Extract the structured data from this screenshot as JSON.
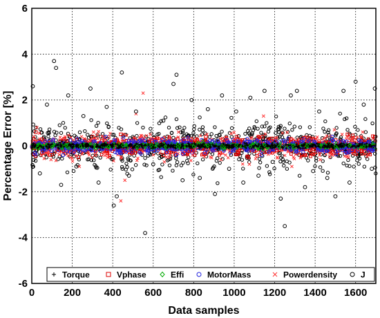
{
  "chart_data": {
    "type": "scatter",
    "title": "",
    "xlabel": "Data samples",
    "ylabel": "Percentage Error [%]",
    "xlim": [
      0,
      1700
    ],
    "ylim": [
      -6,
      6
    ],
    "xticks": [
      0,
      200,
      400,
      600,
      800,
      1000,
      1200,
      1400,
      1600
    ],
    "yticks": [
      -6,
      -4,
      -2,
      0,
      2,
      4,
      6
    ],
    "x_tick_labels": [
      "0",
      "200",
      "400",
      "600",
      "800",
      "1000",
      "1200",
      "1400",
      "1600"
    ],
    "y_tick_labels": [
      "-6",
      "-4",
      "-2",
      "0",
      "2",
      "4",
      "6"
    ],
    "grid": true,
    "grid_style": "dotted",
    "legend_position": "bottom",
    "series": [
      {
        "name": "Torque",
        "marker": "plus",
        "color": "#000000",
        "x": [
          10,
          80,
          150,
          220,
          290,
          360,
          430,
          500,
          570,
          640,
          710,
          780,
          850,
          920,
          990,
          1060,
          1130,
          1200,
          1270,
          1340,
          1410,
          1480,
          1550,
          1620,
          1690
        ],
        "values": [
          0.1,
          -0.1,
          0.2,
          0.0,
          -0.2,
          0.1,
          0.0,
          -0.1,
          0.2,
          0.1,
          -0.1,
          0.0,
          0.1,
          -0.2,
          0.0,
          0.1,
          -0.1,
          0.2,
          0.0,
          -0.1,
          0.1,
          0.0,
          -0.2,
          0.1,
          0.0
        ]
      },
      {
        "name": "Vphase",
        "marker": "square",
        "color": "#dd0000",
        "x": [
          20,
          90,
          160,
          230,
          300,
          370,
          440,
          510,
          580,
          650,
          720,
          790,
          860,
          930,
          1000,
          1070,
          1140,
          1210,
          1280,
          1350,
          1420,
          1490,
          1560,
          1630,
          1695
        ],
        "values": [
          0.6,
          -0.4,
          0.3,
          -0.5,
          0.4,
          -0.2,
          0.5,
          -0.3,
          0.2,
          -0.4,
          0.3,
          -0.2,
          0.4,
          -0.3,
          0.2,
          -0.5,
          0.4,
          -0.2,
          0.3,
          -0.4,
          0.2,
          -0.3,
          0.5,
          -0.2,
          0.4
        ]
      },
      {
        "name": "Effi",
        "marker": "diamond",
        "color": "#00aa00",
        "x": [
          30,
          100,
          170,
          240,
          310,
          380,
          450,
          520,
          590,
          660,
          730,
          800,
          870,
          940,
          1010,
          1080,
          1150,
          1220,
          1290,
          1360,
          1430,
          1500,
          1570,
          1640
        ],
        "values": [
          0.05,
          -0.05,
          0.03,
          -0.02,
          0.04,
          -0.03,
          0.02,
          -0.04,
          0.03,
          -0.02,
          0.01,
          -0.03,
          0.02,
          -0.01,
          0.03,
          -0.02,
          0.04,
          -0.03,
          0.02,
          -0.01,
          0.03,
          -0.02,
          0.01,
          -0.03
        ]
      },
      {
        "name": "MotorMass",
        "marker": "circle",
        "color": "#2222dd",
        "x": [
          15,
          85,
          155,
          225,
          295,
          365,
          435,
          505,
          575,
          645,
          715,
          785,
          855,
          925,
          995,
          1065,
          1135,
          1205,
          1275,
          1345,
          1415,
          1485,
          1555,
          1625,
          1690
        ],
        "values": [
          -0.3,
          0.2,
          -0.4,
          0.3,
          -0.2,
          0.4,
          -0.3,
          0.2,
          -0.1,
          0.3,
          -0.4,
          0.2,
          -0.3,
          0.1,
          -0.2,
          0.3,
          -0.4,
          0.2,
          -0.1,
          0.3,
          -0.2,
          0.4,
          -0.3,
          0.2,
          -0.1
        ]
      },
      {
        "name": "Powerdensity",
        "marker": "cross",
        "color": "#ff3333",
        "x": [
          25,
          95,
          165,
          235,
          305,
          375,
          440,
          460,
          515,
          550,
          585,
          655,
          725,
          795,
          865,
          935,
          1005,
          1075,
          1145,
          1215,
          1285,
          1355,
          1425,
          1495,
          1565,
          1635
        ],
        "values": [
          0.8,
          -0.6,
          0.4,
          -0.9,
          0.6,
          -0.5,
          -2.4,
          -1.5,
          1.4,
          2.3,
          0.5,
          -0.7,
          0.6,
          -0.4,
          0.5,
          -0.6,
          0.3,
          -0.8,
          1.3,
          -0.5,
          -0.9,
          0.4,
          -0.6,
          0.7,
          -0.5,
          0.6
        ]
      },
      {
        "name": "J",
        "marker": "circle",
        "color": "#000000",
        "x": [
          5,
          40,
          75,
          110,
          120,
          145,
          180,
          220,
          255,
          290,
          330,
          370,
          405,
          420,
          445,
          480,
          515,
          560,
          600,
          650,
          700,
          715,
          745,
          790,
          830,
          870,
          905,
          940,
          975,
          1010,
          1045,
          1080,
          1120,
          1150,
          1190,
          1230,
          1250,
          1280,
          1310,
          1350,
          1390,
          1420,
          1460,
          1500,
          1540,
          1570,
          1600,
          1640,
          1680,
          1695
        ],
        "values": [
          2.6,
          -1.2,
          1.8,
          3.7,
          3.4,
          -1.7,
          2.2,
          -0.9,
          1.3,
          2.5,
          -1.6,
          1.7,
          -2.6,
          -2.2,
          3.2,
          -1.3,
          1.5,
          -3.8,
          -0.8,
          1.1,
          2.7,
          3.1,
          -1.5,
          2.0,
          -1.4,
          1.6,
          -2.1,
          2.2,
          -1.0,
          1.5,
          -1.6,
          2.1,
          -1.3,
          2.4,
          -0.7,
          -2.3,
          -3.5,
          2.2,
          2.4,
          -1.8,
          -1.1,
          1.5,
          -1.4,
          -2.2,
          2.4,
          -1.6,
          2.8,
          1.8,
          -1.0,
          2.5
        ]
      }
    ]
  }
}
